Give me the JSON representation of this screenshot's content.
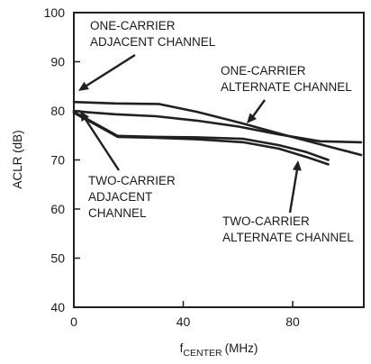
{
  "chart_data": {
    "type": "line",
    "title": "",
    "xlabel": "f",
    "xlabel_sub": "CENTER",
    "xlabel_unit": "(MHz)",
    "ylabel": "ACLR (dB)",
    "xlim": [
      0,
      106
    ],
    "ylim": [
      40,
      100
    ],
    "xticks": [
      0,
      40,
      80
    ],
    "yticks": [
      40,
      50,
      60,
      70,
      80,
      90,
      100
    ],
    "grid": false,
    "line_color": "#231f20",
    "series": [
      {
        "name": "ONE-CARRIER ADJACENT CHANNEL",
        "x": [
          0,
          5,
          15,
          30,
          45,
          60,
          75,
          90,
          105
        ],
        "y": [
          80,
          79.7,
          79.3,
          78.9,
          78.0,
          76.8,
          75.2,
          73.8,
          73.6
        ]
      },
      {
        "name": "ONE-CARRIER ALTERNATE CHANNEL",
        "x": [
          0,
          15,
          31,
          45,
          62,
          77,
          90,
          105
        ],
        "y": [
          81.8,
          81.5,
          81.4,
          79.8,
          77.4,
          75.1,
          73.2,
          71.0
        ]
      },
      {
        "name": "TWO-CARRIER ADJACENT CHANNEL",
        "x": [
          0,
          8,
          16,
          30,
          45,
          62,
          75,
          85,
          93
        ],
        "y": [
          79.6,
          77.2,
          74.7,
          74.5,
          74.2,
          73.6,
          72.3,
          70.6,
          69.1
        ]
      },
      {
        "name": "TWO-CARRIER ALTERNATE CHANNEL",
        "x": [
          0,
          16,
          30,
          45,
          62,
          75,
          85,
          93
        ],
        "y": [
          79.8,
          74.9,
          74.7,
          74.6,
          74.3,
          73.0,
          71.6,
          70.0
        ]
      }
    ],
    "annotations": [
      {
        "lines": [
          "ONE-CARRIER",
          "ADJACENT CHANNEL"
        ],
        "series": 0
      },
      {
        "lines": [
          "ONE-CARRIER",
          "ALTERNATE CHANNEL"
        ],
        "series": 1
      },
      {
        "lines": [
          "TWO-CARRIER",
          "ADJACENT",
          "CHANNEL"
        ],
        "series": 2
      },
      {
        "lines": [
          "TWO-CARRIER",
          "ALTERNATE CHANNEL"
        ],
        "series": 3
      }
    ]
  }
}
